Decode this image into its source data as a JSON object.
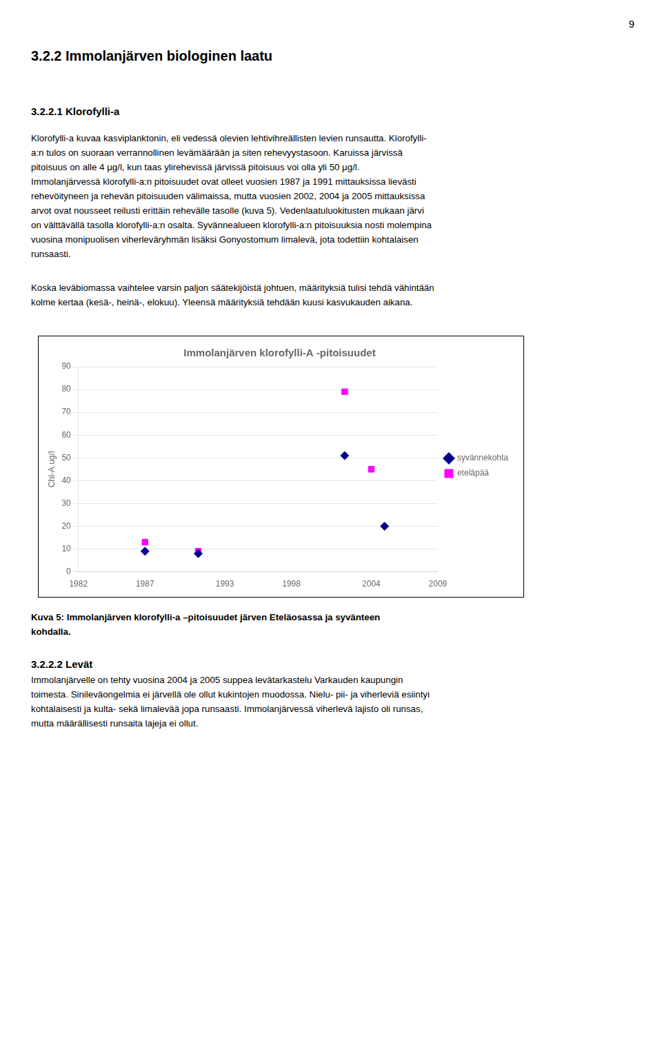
{
  "page": {
    "page_number": "9",
    "heading1": "3.2.2 Immolanjärven biologinen laatu",
    "heading2": "3.2.2.1 Klorofylli-a",
    "paragraph1": [
      "Klorofylli-a kuvaa kasviplanktonin, eli vedessä olevien lehtivihreällisten levien runsautta. Klorofylli-",
      "a:n tulos on suoraan verrannollinen levämäärään ja siten rehevyystasoon. Karuissa järvissä",
      "pitoisuus on alle 4 μg/l, kun taas ylirehevissä järvissä pitoisuus voi olla yli 50 μg/l.",
      "Immolanjärvessä klorofylli-a:n pitoisuudet ovat olleet vuosien 1987 ja 1991 mittauksissa lievästi",
      "rehevöityneen ja rehevän pitoisuuden välimaissa, mutta vuosien 2002, 2004 ja 2005 mittauksissa",
      "arvot ovat nousseet reilusti erittäin rehevälle tasolle (kuva 5). Vedenlaatuluokitusten mukaan järvi",
      "on välttävällä tasolla klorofylli-a:n osalta. Syvännealueen klorofylli-a:n pitoisuuksia nosti molempina",
      "vuosina monipuolisen viherleväryhmän lisäksi Gonyostomum limalevä, jota todettiin kohtalaisen",
      "runsaasti."
    ],
    "paragraph2": [
      "Koska leväbiomassa vaihtelee varsin paljon säätekijöistä johtuen, määrityksiä tulisi tehdä vähintään",
      "kolme kertaa (kesä-, heinä-, elokuu). Yleensä määrityksiä tehdään kuusi kasvukauden aikana."
    ],
    "caption": [
      "Kuva 5: Immolanjärven klorofylli-a –pitoisuudet järven Eteläosassa ja syvänteen",
      "kohdalla."
    ],
    "heading3": "3.2.2.2 Levät",
    "paragraph3": [
      "Immolanjärvelle on tehty vuosina 2004 ja 2005 suppea levätarkastelu Varkauden kaupungin",
      "toimesta. Sinileväongelmia ei järvellä ole ollut kukintojen muodossa. Nielu- pii- ja viherleviä esiintyi",
      "kohtalaisesti ja kulta- sekä limalevää jopa runsaasti. Immolanjärvessä viherlevä lajisto oli runsas,",
      "mutta määrällisesti runsaita lajeja ei ollut."
    ]
  },
  "chart_data": {
    "type": "scatter",
    "title": "Immolanjärven klorofylli-A -pitoisuudet",
    "ylabel": "Chl-A ug/l",
    "series": [
      {
        "name": "syvännekohta",
        "color": "#00008B",
        "marker": "diamond",
        "x": [
          1987,
          1991,
          2002,
          2005
        ],
        "values": [
          9,
          8,
          51,
          20
        ]
      },
      {
        "name": "eteläpää",
        "color": "#ff00ff",
        "marker": "square",
        "x": [
          1987,
          1991,
          2002,
          2004
        ],
        "values": [
          13,
          9,
          79,
          45
        ]
      }
    ],
    "xlim": [
      1982,
      2009
    ],
    "ylim": [
      0,
      90
    ],
    "xticks": [
      1982,
      1987,
      1993,
      1998,
      2004,
      2009
    ],
    "yticks": [
      0,
      10,
      20,
      30,
      40,
      50,
      60,
      70,
      80,
      90
    ],
    "grid": "y",
    "legend": "right"
  }
}
